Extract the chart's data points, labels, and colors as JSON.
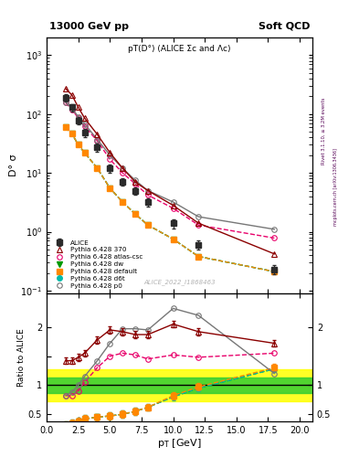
{
  "title_top": "13000 GeV pp",
  "title_right": "Soft QCD",
  "main_title": "pT(D°) (ALICE Σc and Λc)",
  "xlabel": "p_{T} [GeV]",
  "ylabel_main": "D° σ",
  "ylabel_ratio": "Ratio to ALICE",
  "watermark": "ALICE_2022_I1868463",
  "right_label_top": "Rivet 3.1.10, ≥ 3.2M events",
  "right_label_bot": "mcplots.cern.ch [arXiv:1306.3436]",
  "ALICE_x": [
    1.5,
    2.0,
    2.5,
    3.0,
    4.0,
    5.0,
    6.0,
    7.0,
    8.0,
    10.0,
    12.0,
    18.0
  ],
  "ALICE_y": [
    190,
    130,
    78,
    48,
    27,
    12,
    7.0,
    5.0,
    3.2,
    1.4,
    0.6,
    0.23
  ],
  "ALICE_yerr": [
    25,
    18,
    11,
    7,
    4,
    2,
    1.0,
    0.7,
    0.5,
    0.25,
    0.1,
    0.04
  ],
  "p370_x": [
    1.5,
    2.0,
    2.5,
    3.0,
    4.0,
    5.0,
    6.0,
    7.0,
    8.0,
    10.0,
    12.0,
    18.0
  ],
  "p370_y": [
    270,
    210,
    130,
    85,
    45,
    22,
    12,
    7.0,
    5.0,
    2.8,
    1.4,
    0.42
  ],
  "patlas_x": [
    1.5,
    2.0,
    2.5,
    3.0,
    4.0,
    5.0,
    6.0,
    7.0,
    8.0,
    10.0,
    12.0,
    18.0
  ],
  "patlas_y": [
    155,
    120,
    85,
    62,
    35,
    17,
    10,
    6.5,
    4.2,
    2.5,
    1.3,
    0.78
  ],
  "pd6t_x": [
    1.5,
    2.0,
    2.5,
    3.0,
    4.0,
    5.0,
    6.0,
    7.0,
    8.0,
    10.0,
    12.0,
    18.0
  ],
  "pd6t_y": [
    60,
    46,
    30,
    22,
    12,
    5.5,
    3.2,
    2.0,
    1.3,
    0.75,
    0.38,
    0.21
  ],
  "pdefault_x": [
    1.5,
    2.0,
    2.5,
    3.0,
    4.0,
    5.0,
    6.0,
    7.0,
    8.0,
    10.0,
    12.0,
    18.0
  ],
  "pdefault_y": [
    60,
    46,
    30,
    22,
    12,
    5.5,
    3.2,
    2.0,
    1.3,
    0.75,
    0.38,
    0.21
  ],
  "pdw_x": [
    1.5,
    2.0,
    2.5,
    3.0,
    4.0,
    5.0,
    6.0,
    7.0,
    8.0,
    10.0,
    12.0,
    18.0
  ],
  "pdw_y": [
    60,
    46,
    30,
    22,
    12,
    5.5,
    3.2,
    2.0,
    1.3,
    0.75,
    0.38,
    0.21
  ],
  "pp0_x": [
    1.5,
    2.0,
    2.5,
    3.0,
    4.0,
    5.0,
    6.0,
    7.0,
    8.0,
    10.0,
    12.0,
    18.0
  ],
  "pp0_y": [
    160,
    125,
    90,
    68,
    37,
    20,
    12,
    7.5,
    5.0,
    3.2,
    1.8,
    1.1
  ],
  "ratio_370_x": [
    1.5,
    2.0,
    2.5,
    3.0,
    4.0,
    5.0,
    6.0,
    7.0,
    8.0,
    10.0,
    12.0,
    18.0
  ],
  "ratio_370_y": [
    1.42,
    1.42,
    1.48,
    1.55,
    1.78,
    1.95,
    1.92,
    1.87,
    1.87,
    2.05,
    1.92,
    1.72
  ],
  "ratio_atlas_x": [
    1.5,
    2.0,
    2.5,
    3.0,
    4.0,
    5.0,
    6.0,
    7.0,
    8.0,
    10.0,
    12.0,
    18.0
  ],
  "ratio_atlas_y": [
    0.82,
    0.82,
    0.9,
    1.05,
    1.3,
    1.5,
    1.55,
    1.52,
    1.45,
    1.52,
    1.48,
    1.55
  ],
  "ratio_d6t_x": [
    1.5,
    2.0,
    2.5,
    3.0,
    4.0,
    5.0,
    6.0,
    7.0,
    8.0,
    10.0,
    12.0,
    18.0
  ],
  "ratio_d6t_y": [
    0.32,
    0.35,
    0.38,
    0.42,
    0.45,
    0.47,
    0.5,
    0.55,
    0.62,
    0.8,
    0.95,
    1.28
  ],
  "ratio_default_x": [
    1.5,
    2.0,
    2.5,
    3.0,
    4.0,
    5.0,
    6.0,
    7.0,
    8.0,
    10.0,
    12.0,
    18.0
  ],
  "ratio_default_y": [
    0.32,
    0.35,
    0.38,
    0.42,
    0.45,
    0.47,
    0.5,
    0.55,
    0.62,
    0.82,
    0.97,
    1.3
  ],
  "ratio_dw_x": [
    1.5,
    2.0,
    2.5,
    3.0,
    4.0,
    5.0,
    6.0,
    7.0,
    8.0,
    10.0,
    12.0,
    18.0
  ],
  "ratio_dw_y": [
    0.32,
    0.35,
    0.38,
    0.42,
    0.45,
    0.47,
    0.5,
    0.55,
    0.62,
    0.8,
    0.95,
    1.28
  ],
  "ratio_p0_x": [
    1.5,
    2.0,
    2.5,
    3.0,
    4.0,
    5.0,
    6.0,
    7.0,
    8.0,
    10.0,
    12.0,
    18.0
  ],
  "ratio_p0_y": [
    0.82,
    0.88,
    1.0,
    1.15,
    1.42,
    1.72,
    1.97,
    1.97,
    1.95,
    2.32,
    2.2,
    1.2
  ],
  "color_alice": "#2b2b2b",
  "color_370": "#8b0000",
  "color_atlas": "#e8006a",
  "color_d6t": "#00bbaa",
  "color_default": "#ff8800",
  "color_dw": "#009900",
  "color_p0": "#777777",
  "band_green_lo": 0.87,
  "band_green_hi": 1.13,
  "band_yellow_lo": 0.73,
  "band_yellow_hi": 1.27,
  "xlim": [
    0,
    21
  ],
  "ylim_main_lo": 0.09,
  "ylim_main_hi": 2000,
  "ylim_ratio_lo": 0.38,
  "ylim_ratio_hi": 2.58
}
